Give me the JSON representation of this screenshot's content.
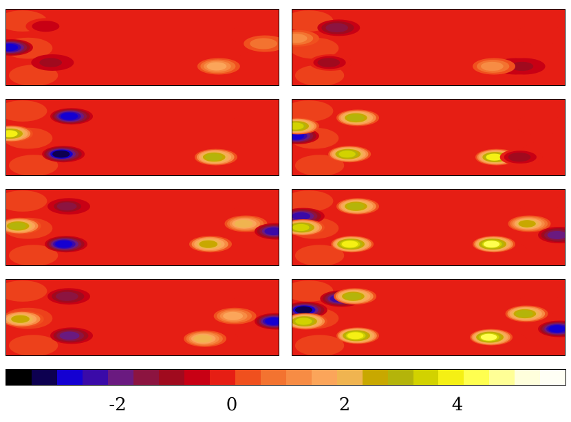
{
  "chart_data": {
    "type": "heatmap",
    "title": "",
    "xlabel": "",
    "ylabel": "",
    "panel_layout": {
      "rows": 4,
      "columns": 2
    },
    "colorbar": {
      "range": [
        -4,
        6
      ],
      "ticks": [
        -2,
        0,
        2,
        4
      ],
      "tick_labels": [
        "-2",
        "0",
        "2",
        "4"
      ],
      "colors": [
        "#000000",
        "#0d0050",
        "#1400d2",
        "#3a0aa8",
        "#6a1a80",
        "#8c1440",
        "#a00a1e",
        "#c80014",
        "#e61e14",
        "#f0501e",
        "#f37330",
        "#f78c44",
        "#fba55a",
        "#f0b450",
        "#c8a800",
        "#b4b40a",
        "#d2d200",
        "#f5f014",
        "#ffff50",
        "#ffff96",
        "#ffffdc",
        "#fffff5"
      ],
      "background_value": 0
    },
    "panels": [
      {
        "id": "r1c1",
        "row": 1,
        "column": 1,
        "features": [
          {
            "kind": "low",
            "x": 0.02,
            "y": 0.5,
            "value": -3.0
          },
          {
            "kind": "low",
            "x": 0.17,
            "y": 0.7,
            "value": -1.2
          },
          {
            "kind": "low",
            "x": 0.15,
            "y": 0.22,
            "value": -0.6
          },
          {
            "kind": "high",
            "x": 0.78,
            "y": 0.75,
            "value": 1.6
          },
          {
            "kind": "high",
            "x": 0.95,
            "y": 0.45,
            "value": 0.8
          }
        ]
      },
      {
        "id": "r1c2",
        "row": 1,
        "column": 2,
        "features": [
          {
            "kind": "low",
            "x": 0.17,
            "y": 0.24,
            "value": -1.3
          },
          {
            "kind": "low",
            "x": 0.14,
            "y": 0.7,
            "value": -1.0
          },
          {
            "kind": "high",
            "x": 0.02,
            "y": 0.38,
            "value": 1.2
          },
          {
            "kind": "low",
            "x": 0.82,
            "y": 0.75,
            "value": -1.2
          },
          {
            "kind": "low",
            "x": 0.85,
            "y": 0.75,
            "value": -1.1
          },
          {
            "kind": "high",
            "x": 0.74,
            "y": 0.75,
            "value": 1.0
          }
        ]
      },
      {
        "id": "r2c1",
        "row": 2,
        "column": 1,
        "features": [
          {
            "kind": "low",
            "x": 0.24,
            "y": 0.22,
            "value": -3.0
          },
          {
            "kind": "low",
            "x": 0.21,
            "y": 0.72,
            "value": -3.2
          },
          {
            "kind": "high",
            "x": 0.02,
            "y": 0.45,
            "value": 3.8
          },
          {
            "kind": "high",
            "x": 0.77,
            "y": 0.76,
            "value": 3.2
          }
        ]
      },
      {
        "id": "r2c2",
        "row": 2,
        "column": 2,
        "features": [
          {
            "kind": "low",
            "x": 0.02,
            "y": 0.48,
            "value": -2.8
          },
          {
            "kind": "high",
            "x": 0.02,
            "y": 0.35,
            "value": 3.5
          },
          {
            "kind": "high",
            "x": 0.24,
            "y": 0.24,
            "value": 3.0
          },
          {
            "kind": "high",
            "x": 0.21,
            "y": 0.72,
            "value": 3.6
          },
          {
            "kind": "high",
            "x": 0.75,
            "y": 0.76,
            "value": 3.8
          },
          {
            "kind": "low",
            "x": 0.84,
            "y": 0.76,
            "value": -1.0
          }
        ]
      },
      {
        "id": "r3c1",
        "row": 3,
        "column": 1,
        "features": [
          {
            "kind": "low",
            "x": 0.23,
            "y": 0.22,
            "value": -1.6
          },
          {
            "kind": "low",
            "x": 0.22,
            "y": 0.72,
            "value": -2.9
          },
          {
            "kind": "high",
            "x": 0.05,
            "y": 0.48,
            "value": 3.0
          },
          {
            "kind": "high",
            "x": 0.75,
            "y": 0.72,
            "value": 2.6
          },
          {
            "kind": "high",
            "x": 0.88,
            "y": 0.45,
            "value": 2.2
          },
          {
            "kind": "low",
            "x": 0.99,
            "y": 0.55,
            "value": -2.5
          }
        ]
      },
      {
        "id": "r3c2",
        "row": 3,
        "column": 2,
        "features": [
          {
            "kind": "low",
            "x": 0.04,
            "y": 0.35,
            "value": -2.6
          },
          {
            "kind": "high",
            "x": 0.04,
            "y": 0.5,
            "value": 3.6
          },
          {
            "kind": "high",
            "x": 0.24,
            "y": 0.22,
            "value": 3.2
          },
          {
            "kind": "high",
            "x": 0.22,
            "y": 0.72,
            "value": 4.0
          },
          {
            "kind": "high",
            "x": 0.74,
            "y": 0.72,
            "value": 4.2
          },
          {
            "kind": "high",
            "x": 0.87,
            "y": 0.45,
            "value": 2.8
          },
          {
            "kind": "low",
            "x": 0.98,
            "y": 0.6,
            "value": -2.0
          }
        ]
      },
      {
        "id": "r4c1",
        "row": 4,
        "column": 1,
        "features": [
          {
            "kind": "high",
            "x": 0.06,
            "y": 0.52,
            "value": 2.6
          },
          {
            "kind": "low",
            "x": 0.23,
            "y": 0.22,
            "value": -1.4
          },
          {
            "kind": "low",
            "x": 0.24,
            "y": 0.74,
            "value": -1.8
          },
          {
            "kind": "high",
            "x": 0.73,
            "y": 0.78,
            "value": 2.3
          },
          {
            "kind": "high",
            "x": 0.84,
            "y": 0.48,
            "value": 1.6
          },
          {
            "kind": "low",
            "x": 0.99,
            "y": 0.55,
            "value": -2.8
          }
        ]
      },
      {
        "id": "r4c2",
        "row": 4,
        "column": 2,
        "features": [
          {
            "kind": "low",
            "x": 0.05,
            "y": 0.4,
            "value": -3.2
          },
          {
            "kind": "high",
            "x": 0.05,
            "y": 0.55,
            "value": 3.6
          },
          {
            "kind": "low",
            "x": 0.18,
            "y": 0.25,
            "value": -2.6
          },
          {
            "kind": "high",
            "x": 0.23,
            "y": 0.22,
            "value": 3.2
          },
          {
            "kind": "high",
            "x": 0.24,
            "y": 0.74,
            "value": 4.0
          },
          {
            "kind": "high",
            "x": 0.73,
            "y": 0.76,
            "value": 4.2
          },
          {
            "kind": "high",
            "x": 0.86,
            "y": 0.45,
            "value": 3.0
          },
          {
            "kind": "low",
            "x": 0.98,
            "y": 0.65,
            "value": -2.8
          }
        ]
      }
    ]
  }
}
